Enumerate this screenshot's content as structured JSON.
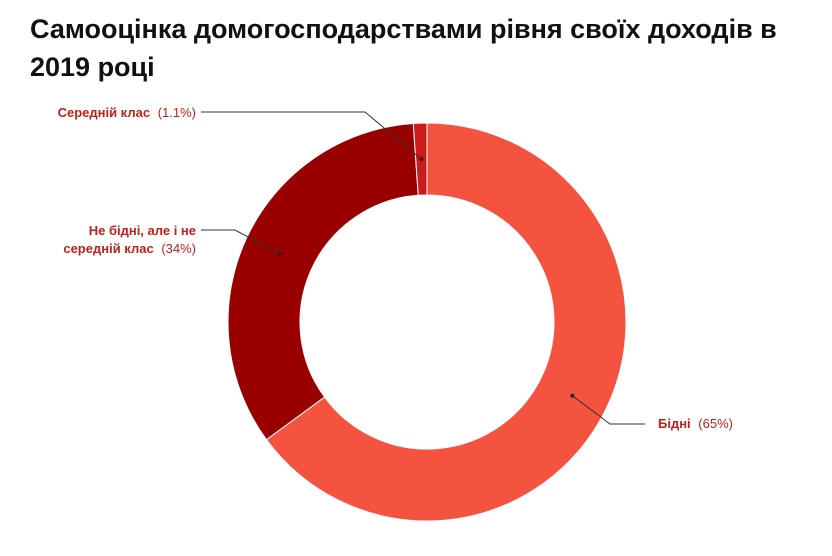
{
  "chart_data": {
    "type": "pie",
    "title": "Самооцінка домогосподарствами рівня своїх доходів в 2019 році",
    "labels": [
      {
        "name": "Середній клас",
        "pct_text": "(1.1%)"
      },
      {
        "name_lines": [
          "Не бідні, але і не",
          "середній клас"
        ],
        "pct_text": "(34%)"
      },
      {
        "name": "Бідні",
        "pct_text": "(65%)"
      }
    ],
    "slices": [
      {
        "name": "Бідні",
        "value": 65,
        "color": "#f4543f"
      },
      {
        "name": "Не бідні, але і не середній клас",
        "value": 34,
        "color": "#990000"
      },
      {
        "name": "Середній клас",
        "value": 1.1,
        "color": "#cc1b1b"
      }
    ],
    "label_color": "#c0211a",
    "donut": true
  }
}
